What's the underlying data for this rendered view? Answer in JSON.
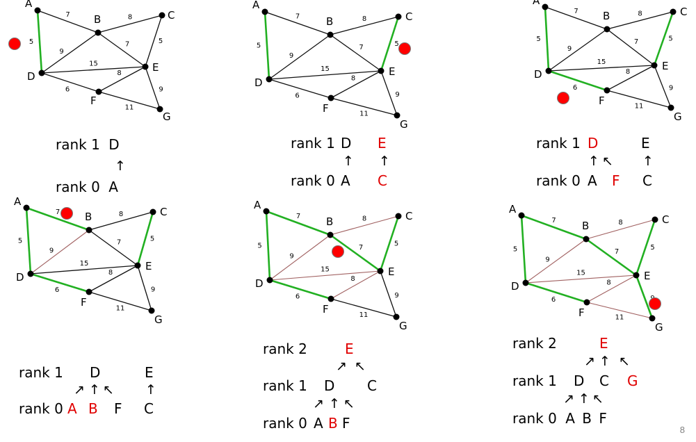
{
  "colors": {
    "edge": "#111111",
    "mst": "#22b022",
    "discarded": "#a06060",
    "marker": "#ff0000",
    "highlight": "#e00000"
  },
  "graph": {
    "vertices": [
      "A",
      "B",
      "C",
      "D",
      "E",
      "F",
      "G"
    ],
    "edges": [
      {
        "id": "AB",
        "u": "A",
        "v": "B",
        "w": "7"
      },
      {
        "id": "AD",
        "u": "A",
        "v": "D",
        "w": "5"
      },
      {
        "id": "BC",
        "u": "B",
        "v": "C",
        "w": "8"
      },
      {
        "id": "BD",
        "u": "B",
        "v": "D",
        "w": "9"
      },
      {
        "id": "BE",
        "u": "B",
        "v": "E",
        "w": "7"
      },
      {
        "id": "CE",
        "u": "C",
        "v": "E",
        "w": "5"
      },
      {
        "id": "DE",
        "u": "D",
        "v": "E",
        "w": "15"
      },
      {
        "id": "DF",
        "u": "D",
        "v": "F",
        "w": "6"
      },
      {
        "id": "EF",
        "u": "E",
        "v": "F",
        "w": "8"
      },
      {
        "id": "EG",
        "u": "E",
        "v": "G",
        "w": "9"
      },
      {
        "id": "FG",
        "u": "F",
        "v": "G",
        "w": "11"
      }
    ]
  },
  "steps": [
    {
      "mst": [
        "AD"
      ],
      "discarded": [],
      "ranks": [
        {
          "label": "rank 1",
          "nodes": [
            {
              "t": "D",
              "red": false
            }
          ]
        },
        {
          "label": "rank 0",
          "nodes": [
            {
              "t": "A",
              "red": false
            }
          ]
        }
      ]
    },
    {
      "mst": [
        "AD",
        "CE"
      ],
      "discarded": [],
      "ranks": [
        {
          "label": "rank 1",
          "nodes": [
            {
              "t": "D",
              "red": false
            },
            {
              "t": "E",
              "red": true
            }
          ]
        },
        {
          "label": "rank 0",
          "nodes": [
            {
              "t": "A",
              "red": false
            },
            {
              "t": "C",
              "red": true
            }
          ]
        }
      ]
    },
    {
      "mst": [
        "AD",
        "CE",
        "DF"
      ],
      "discarded": [],
      "ranks": [
        {
          "label": "rank 1",
          "nodes": [
            {
              "t": "D",
              "red": true
            },
            {
              "t": "E",
              "red": false
            }
          ]
        },
        {
          "label": "rank 0",
          "nodes": [
            {
              "t": "A",
              "red": false
            },
            {
              "t": "F",
              "red": true
            },
            {
              "t": "C",
              "red": false
            }
          ]
        }
      ]
    },
    {
      "mst": [
        "AD",
        "CE",
        "DF",
        "AB"
      ],
      "discarded": [
        "BD"
      ],
      "ranks": [
        {
          "label": "rank 1",
          "nodes": [
            {
              "t": "D",
              "red": false
            },
            {
              "t": "E",
              "red": false
            }
          ]
        },
        {
          "label": "rank 0",
          "nodes": [
            {
              "t": "A",
              "red": true
            },
            {
              "t": "B",
              "red": true
            },
            {
              "t": "F",
              "red": false
            },
            {
              "t": "C",
              "red": false
            }
          ]
        }
      ]
    },
    {
      "mst": [
        "AD",
        "CE",
        "DF",
        "AB",
        "BE"
      ],
      "discarded": [
        "BD",
        "BC",
        "DE",
        "EF"
      ],
      "ranks": [
        {
          "label": "rank 2",
          "nodes": [
            {
              "t": "E",
              "red": true
            }
          ]
        },
        {
          "label": "rank 1",
          "nodes": [
            {
              "t": "D",
              "red": false
            },
            {
              "t": "C",
              "red": false
            }
          ]
        },
        {
          "label": "rank 0",
          "nodes": [
            {
              "t": "A",
              "red": false
            },
            {
              "t": "B",
              "red": true
            },
            {
              "t": "F",
              "red": false
            }
          ]
        }
      ]
    },
    {
      "mst": [
        "AD",
        "CE",
        "DF",
        "AB",
        "BE",
        "EG"
      ],
      "discarded": [
        "BD",
        "BC",
        "DE",
        "EF",
        "FG"
      ],
      "ranks": [
        {
          "label": "rank 2",
          "nodes": [
            {
              "t": "E",
              "red": false
            }
          ]
        },
        {
          "label": "rank 1",
          "nodes": [
            {
              "t": "D",
              "red": false
            },
            {
              "t": "C",
              "red": false
            },
            {
              "t": "G",
              "red": true
            }
          ]
        },
        {
          "label": "rank 0",
          "nodes": [
            {
              "t": "A",
              "red": false
            },
            {
              "t": "B",
              "red": false
            },
            {
              "t": "F",
              "red": false
            }
          ]
        }
      ]
    }
  ],
  "page_number": "8"
}
